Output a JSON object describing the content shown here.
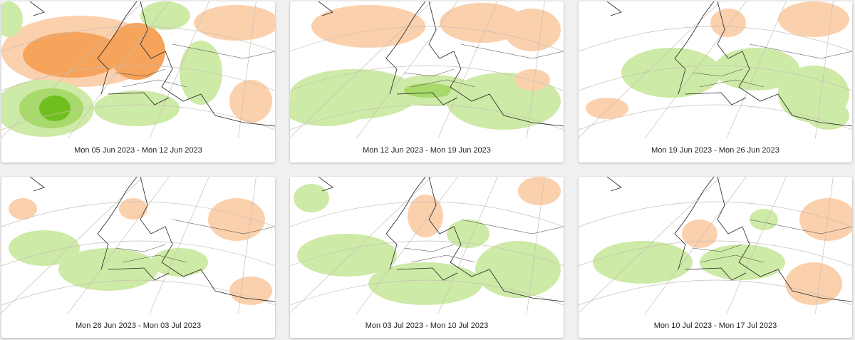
{
  "cards": [
    {
      "caption": "Mon 05 Jun 2023 - Mon 12 Jun 2023"
    },
    {
      "caption": "Mon 12 Jun 2023 - Mon 19 Jun 2023"
    },
    {
      "caption": "Mon 19 Jun 2023 - Mon 26 Jun 2023"
    },
    {
      "caption": "Mon 26 Jun 2023 - Mon 03 Jul 2023"
    },
    {
      "caption": "Mon 03 Jul 2023 - Mon 10 Jul 2023"
    },
    {
      "caption": "Mon 10 Jul 2023 - Mon 17 Jul 2023"
    }
  ]
}
